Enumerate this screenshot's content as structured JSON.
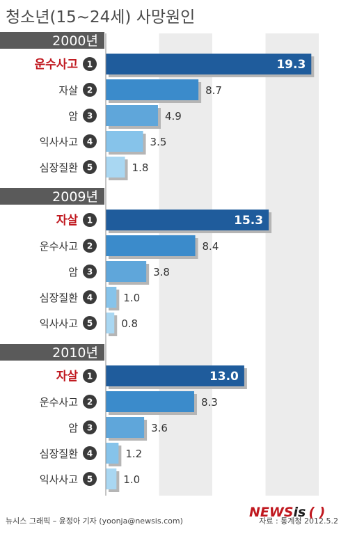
{
  "chart_data": {
    "type": "bar",
    "orientation": "horizontal",
    "title": "청소년(15~24세) 사망원인",
    "xlim": [
      0,
      20
    ],
    "grid": true,
    "groups": [
      {
        "label": "2000년",
        "bars": [
          {
            "rank": "1",
            "category": "운수사고",
            "value": 19.3
          },
          {
            "rank": "2",
            "category": "자살",
            "value": 8.7
          },
          {
            "rank": "3",
            "category": "암",
            "value": 4.9
          },
          {
            "rank": "4",
            "category": "익사사고",
            "value": 3.5
          },
          {
            "rank": "5",
            "category": "심장질환",
            "value": 1.8
          }
        ]
      },
      {
        "label": "2009년",
        "bars": [
          {
            "rank": "1",
            "category": "자살",
            "value": 15.3
          },
          {
            "rank": "2",
            "category": "운수사고",
            "value": 8.4
          },
          {
            "rank": "3",
            "category": "암",
            "value": 3.8
          },
          {
            "rank": "4",
            "category": "심장질환",
            "value": 1.0
          },
          {
            "rank": "5",
            "category": "익사사고",
            "value": 0.8
          }
        ]
      },
      {
        "label": "2010년",
        "bars": [
          {
            "rank": "1",
            "category": "자살",
            "value": 13.0
          },
          {
            "rank": "2",
            "category": "운수사고",
            "value": 8.3
          },
          {
            "rank": "3",
            "category": "암",
            "value": 3.6
          },
          {
            "rank": "4",
            "category": "심장질환",
            "value": 1.2
          },
          {
            "rank": "5",
            "category": "익사사고",
            "value": 1.0
          }
        ]
      }
    ]
  },
  "colors": {
    "rank1": "#1f5c9c",
    "rank2": "#3b8bcb",
    "rank3": "#5fa6da",
    "rank4": "#86c3ea",
    "rank5": "#a9d7f2",
    "first_label": "#c0181f",
    "year_bar": "#5a5a5a",
    "grid_band": "#ececec",
    "rank_circle": "#3a3a3a"
  },
  "footer": {
    "credit": "뉴시스 그래픽 – 윤정아 기자 (yoonja@newsis.com)",
    "source": "자료 : 통계청 2012.5.2",
    "logo_a": "NEWS",
    "logo_b": "is",
    "logo_c": "( )"
  }
}
